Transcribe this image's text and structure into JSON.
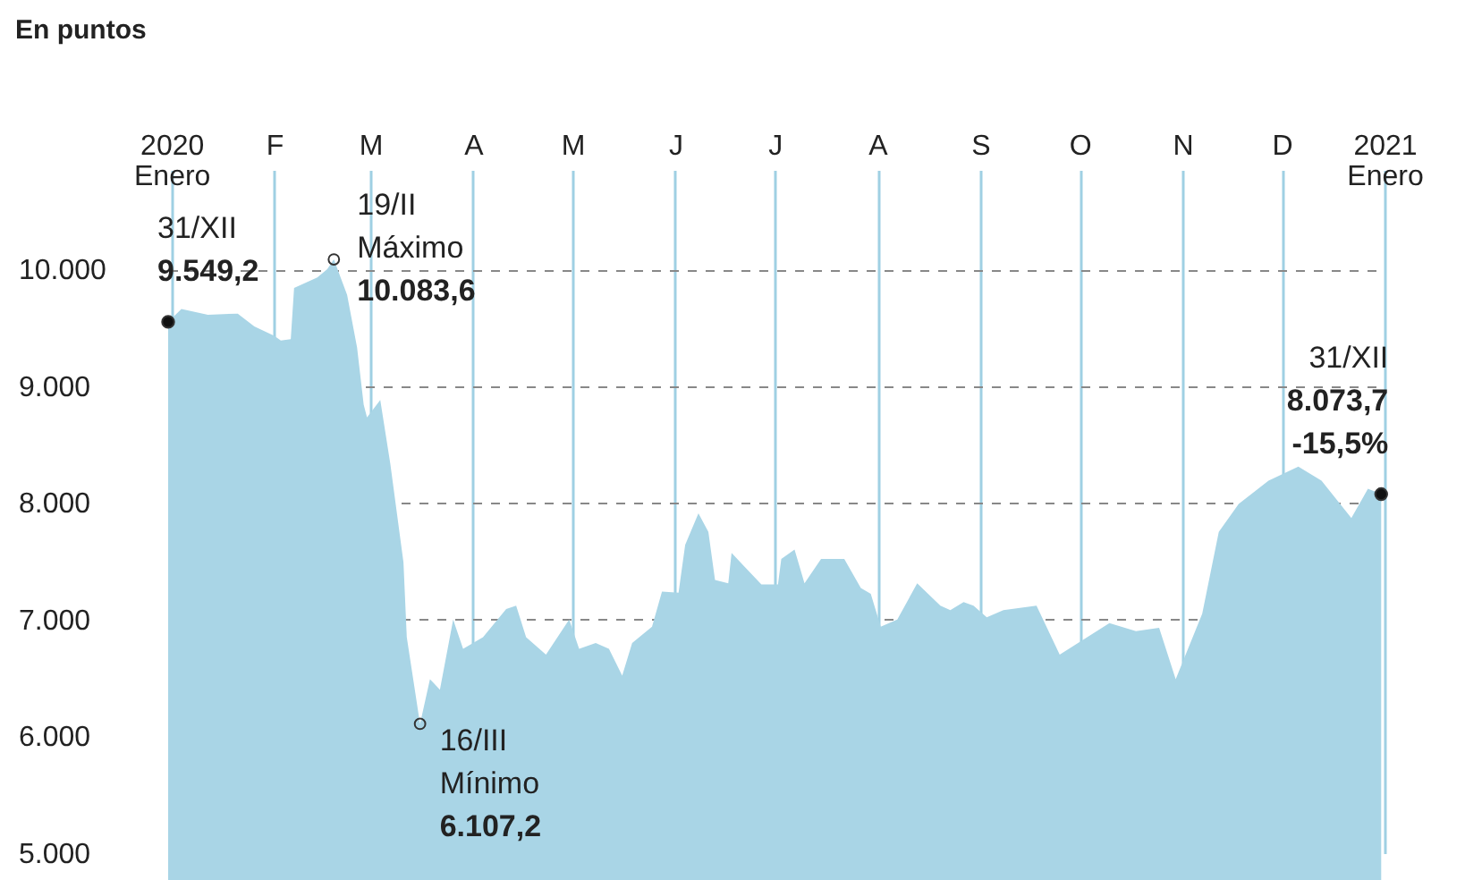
{
  "chart_data": {
    "type": "area",
    "ylabel": "En puntos",
    "x": [
      "2019-12-31",
      "2020-01-04",
      "2020-01-12",
      "2020-01-21",
      "2020-01-26",
      "2020-02-01",
      "2020-02-03",
      "2020-02-06",
      "2020-02-07",
      "2020-02-14",
      "2020-02-17",
      "2020-02-19",
      "2020-02-23",
      "2020-02-26",
      "2020-02-28",
      "2020-02-29",
      "2020-03-04",
      "2020-03-07",
      "2020-03-11",
      "2020-03-12",
      "2020-03-16",
      "2020-03-19",
      "2020-03-22",
      "2020-03-26",
      "2020-03-29",
      "2020-04-04",
      "2020-04-11",
      "2020-04-14",
      "2020-04-17",
      "2020-04-23",
      "2020-04-30",
      "2020-05-03",
      "2020-05-08",
      "2020-05-12",
      "2020-05-16",
      "2020-05-19",
      "2020-05-25",
      "2020-05-28",
      "2020-06-02",
      "2020-06-04",
      "2020-06-08",
      "2020-06-11",
      "2020-06-13",
      "2020-06-17",
      "2020-06-18",
      "2020-06-22",
      "2020-06-27",
      "2020-07-02",
      "2020-07-03",
      "2020-07-07",
      "2020-07-10",
      "2020-07-15",
      "2020-07-22",
      "2020-07-27",
      "2020-07-30",
      "2020-08-02",
      "2020-08-07",
      "2020-08-13",
      "2020-08-20",
      "2020-08-23",
      "2020-08-27",
      "2020-08-30",
      "2020-09-03",
      "2020-09-08",
      "2020-09-18",
      "2020-09-25",
      "2020-09-30",
      "2020-10-10",
      "2020-10-18",
      "2020-10-25",
      "2020-10-30",
      "2020-11-07",
      "2020-11-12",
      "2020-11-18",
      "2020-11-27",
      "2020-12-06",
      "2020-12-13",
      "2020-12-22",
      "2020-12-27",
      "2020-12-31"
    ],
    "series": [
      {
        "color": "#a9d5e6",
        "values": [
          9549.2,
          9660,
          9610,
          9620,
          9510,
          9430,
          9390,
          9400,
          9840,
          9930,
          10000,
          10083.6,
          9780,
          9330,
          8840,
          8730,
          8880,
          8340,
          7490,
          6850,
          6107.2,
          6490,
          6400,
          7000,
          6750,
          6850,
          7090,
          7120,
          6850,
          6700,
          7000,
          6750,
          6800,
          6750,
          6520,
          6800,
          6940,
          7240,
          7230,
          7640,
          7910,
          7750,
          7340,
          7310,
          7570,
          7450,
          7300,
          7300,
          7520,
          7600,
          7310,
          7520,
          7520,
          7270,
          7220,
          6940,
          7000,
          7310,
          7120,
          7080,
          7150,
          7120,
          7020,
          7080,
          7120,
          6700,
          6790,
          6970,
          6900,
          6930,
          6490,
          7050,
          7750,
          7990,
          8190,
          8310,
          8190,
          7870,
          8120,
          8073.7
        ]
      }
    ],
    "xlim": [
      "2019-12-31",
      "2021-01-01"
    ],
    "xticks": [
      {
        "value": "2020-01-01",
        "label": "2020\nEnero"
      },
      {
        "value": "2020-02-01",
        "label": "F"
      },
      {
        "value": "2020-03-01",
        "label": "M"
      },
      {
        "value": "2020-04-01",
        "label": "A"
      },
      {
        "value": "2020-05-01",
        "label": "M"
      },
      {
        "value": "2020-06-01",
        "label": "J"
      },
      {
        "value": "2020-07-01",
        "label": "J"
      },
      {
        "value": "2020-08-01",
        "label": "A"
      },
      {
        "value": "2020-09-01",
        "label": "S"
      },
      {
        "value": "2020-10-01",
        "label": "O"
      },
      {
        "value": "2020-11-01",
        "label": "N"
      },
      {
        "value": "2020-12-01",
        "label": "D"
      },
      {
        "value": "2021-01-01",
        "label": "2021\nEnero"
      }
    ],
    "ylim": [
      5000,
      10850
    ],
    "yticks": [
      {
        "value": 5000,
        "label": "5.000"
      },
      {
        "value": 6000,
        "label": "6.000"
      },
      {
        "value": 7000,
        "label": "7.000"
      },
      {
        "value": 8000,
        "label": "8.000"
      },
      {
        "value": 9000,
        "label": "9.000"
      },
      {
        "value": 10000,
        "label": "10.000"
      }
    ],
    "grid": true,
    "annotations": [
      {
        "text": "31/XII\n9.549,2",
        "x": "2019-12-31",
        "y": 9549.2
      },
      {
        "text": "19/II\nMáximo\n10.083,6",
        "x": "2020-02-19",
        "y": 10083.6
      },
      {
        "text": "16/III\nMínimo\n6.107,2",
        "x": "2020-03-16",
        "y": 6107.2
      },
      {
        "text": "31/XII\n8.073,7\n-15,5%",
        "x": "2020-12-31",
        "y": 8073.7
      }
    ]
  }
}
